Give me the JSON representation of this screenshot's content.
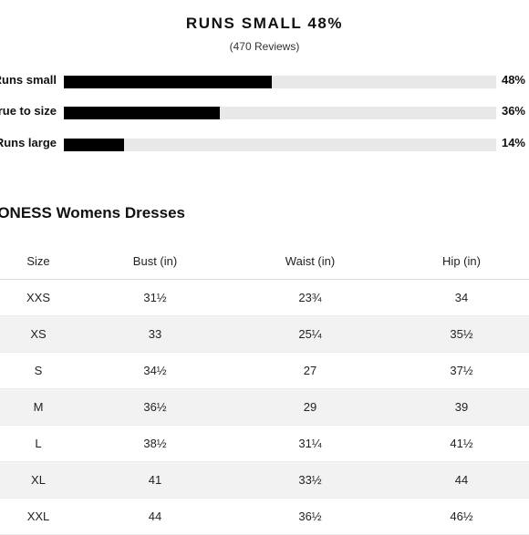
{
  "fit": {
    "title": "RUNS SMALL 48%",
    "reviews": "(470 Reviews)",
    "rows": [
      {
        "label": "Runs small",
        "percent_text": "48%",
        "percent": 48
      },
      {
        "label": "True to size",
        "percent_text": "36%",
        "percent": 36
      },
      {
        "label": "Runs large",
        "percent_text": "14%",
        "percent": 14
      }
    ]
  },
  "size_chart": {
    "title": "LIONESS Womens Dresses",
    "columns": [
      "Size",
      "Bust (in)",
      "Waist (in)",
      "Hip (in)"
    ],
    "rows": [
      [
        "XXS",
        "31½",
        "23¾",
        "34"
      ],
      [
        "XS",
        "33",
        "25¼",
        "35½"
      ],
      [
        "S",
        "34½",
        "27",
        "37½"
      ],
      [
        "M",
        "36½",
        "29",
        "39"
      ],
      [
        "L",
        "38½",
        "31¼",
        "41½"
      ],
      [
        "XL",
        "41",
        "33½",
        "44"
      ],
      [
        "XXL",
        "44",
        "36½",
        "46½"
      ]
    ]
  }
}
